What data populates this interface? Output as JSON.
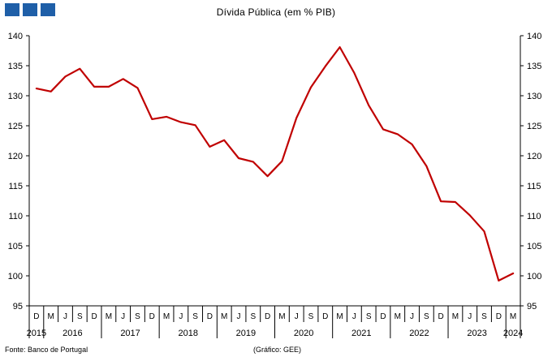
{
  "header": {
    "title": "Dívida Pública (em % PIB)"
  },
  "footer": {
    "source": "Fonte: Banco de Portugal",
    "credit": "(Gráfico: GEE)"
  },
  "colors": {
    "logo": "#1f5fa8",
    "line": "#c00000"
  },
  "chart_data": {
    "type": "line",
    "title": "Dívida Pública (em % PIB)",
    "xlabel": "",
    "ylabel": "",
    "ylim": [
      95,
      140
    ],
    "y_ticks": [
      95,
      100,
      105,
      110,
      115,
      120,
      125,
      130,
      135,
      140
    ],
    "y_axes": "left and right",
    "grid": false,
    "legend": "none",
    "x": [
      "D",
      "M",
      "J",
      "S",
      "D",
      "M",
      "J",
      "S",
      "D",
      "M",
      "J",
      "S",
      "D",
      "M",
      "J",
      "S",
      "D",
      "M",
      "J",
      "S",
      "D",
      "M",
      "J",
      "S",
      "D",
      "M",
      "J",
      "S",
      "D",
      "M",
      "J",
      "S",
      "D",
      "M"
    ],
    "x_groups": [
      {
        "label": "2015",
        "span": [
          0,
          0
        ]
      },
      {
        "label": "2016",
        "span": [
          1,
          4
        ]
      },
      {
        "label": "2017",
        "span": [
          5,
          8
        ]
      },
      {
        "label": "2018",
        "span": [
          9,
          12
        ]
      },
      {
        "label": "2019",
        "span": [
          13,
          16
        ]
      },
      {
        "label": "2020",
        "span": [
          17,
          20
        ]
      },
      {
        "label": "2021",
        "span": [
          21,
          24
        ]
      },
      {
        "label": "2022",
        "span": [
          25,
          28
        ]
      },
      {
        "label": "2023",
        "span": [
          29,
          32
        ]
      },
      {
        "label": "2024",
        "span": [
          33,
          33
        ]
      }
    ],
    "series": [
      {
        "values": [
          131.2,
          130.7,
          133.2,
          134.5,
          131.5,
          131.5,
          132.8,
          131.3,
          126.1,
          126.5,
          125.6,
          125.1,
          121.5,
          122.6,
          119.6,
          119.0,
          116.6,
          119.1,
          126.3,
          131.4,
          134.9,
          138.1,
          133.8,
          128.4,
          124.4,
          123.6,
          121.9,
          118.3,
          112.4,
          112.3,
          110.1,
          107.4,
          99.2,
          100.4
        ]
      }
    ]
  }
}
